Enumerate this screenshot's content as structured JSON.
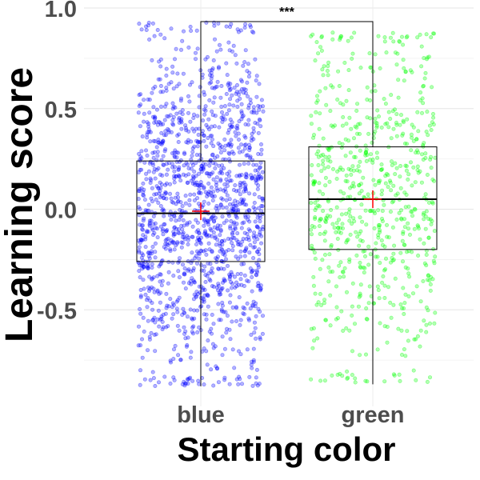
{
  "chart_data": {
    "type": "box",
    "title": "",
    "xlabel": "Starting color",
    "ylabel": "Learning score",
    "categories": [
      "blue",
      "green"
    ],
    "ylim": [
      -0.98,
      1.04
    ],
    "yticks": [
      -0.5,
      0.0,
      0.5,
      1.0
    ],
    "ytick_labels": [
      "-0.5",
      "0.0",
      "0.5",
      "1.0"
    ],
    "grid": true,
    "legend": "none",
    "series": [
      {
        "category": "blue",
        "color": "#0000ff",
        "whisker_low": -0.88,
        "q1": -0.26,
        "median": -0.02,
        "q3": 0.24,
        "whisker_high": 0.93,
        "mean": -0.01,
        "points_approx": 1500,
        "points_min": -0.88,
        "points_max": 0.93
      },
      {
        "category": "green",
        "color": "#00ff00",
        "whisker_low": -0.87,
        "q1": -0.2,
        "median": 0.05,
        "q3": 0.31,
        "whisker_high": 0.88,
        "mean": 0.05,
        "points_approx": 700,
        "points_min": -0.87,
        "points_max": 0.88
      }
    ],
    "mean_marker_color": "#ff0000",
    "significance": {
      "from": "blue",
      "to": "green",
      "label": "***"
    }
  }
}
